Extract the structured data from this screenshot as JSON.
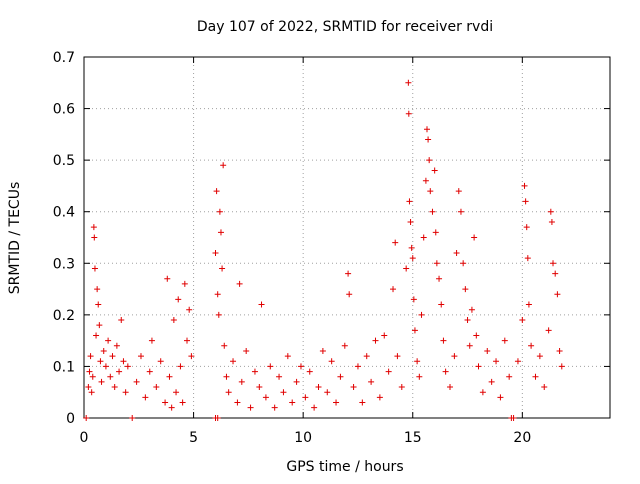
{
  "chart_data": {
    "type": "scatter",
    "title": "Day 107 of 2022, SRMTID for receiver rvdi",
    "xlabel": "GPS time / hours",
    "ylabel": "SRMTID / TECUs",
    "xlim": [
      0,
      24
    ],
    "ylim": [
      0,
      0.7
    ],
    "x_ticks": [
      0,
      5,
      10,
      15,
      20
    ],
    "y_ticks": [
      0,
      0.1,
      0.2,
      0.3,
      0.4,
      0.5,
      0.6,
      0.7
    ],
    "x_tick_labels": [
      "0",
      "5",
      "10",
      "15",
      "20"
    ],
    "y_tick_labels": [
      "0",
      "0.1",
      "0.2",
      "0.3",
      "0.4",
      "0.5",
      "0.6",
      "0.7"
    ],
    "grid": true,
    "marker": "+",
    "series": [
      {
        "name": "rvdi",
        "color": "#e00000",
        "points": [
          [
            0.1,
            0.0
          ],
          [
            2.2,
            0.0
          ],
          [
            6.0,
            0.0
          ],
          [
            6.1,
            0.0
          ],
          [
            19.5,
            0.0
          ],
          [
            19.6,
            0.0
          ],
          [
            0.2,
            0.06
          ],
          [
            0.25,
            0.09
          ],
          [
            0.3,
            0.12
          ],
          [
            0.35,
            0.05
          ],
          [
            0.4,
            0.08
          ],
          [
            0.45,
            0.37
          ],
          [
            0.47,
            0.35
          ],
          [
            0.5,
            0.29
          ],
          [
            0.55,
            0.16
          ],
          [
            0.6,
            0.25
          ],
          [
            0.65,
            0.22
          ],
          [
            0.7,
            0.18
          ],
          [
            0.75,
            0.11
          ],
          [
            0.8,
            0.07
          ],
          [
            0.9,
            0.13
          ],
          [
            1.0,
            0.1
          ],
          [
            1.1,
            0.15
          ],
          [
            1.2,
            0.08
          ],
          [
            1.3,
            0.12
          ],
          [
            1.4,
            0.06
          ],
          [
            1.5,
            0.14
          ],
          [
            1.6,
            0.09
          ],
          [
            1.7,
            0.19
          ],
          [
            1.8,
            0.11
          ],
          [
            1.9,
            0.05
          ],
          [
            2.0,
            0.1
          ],
          [
            2.4,
            0.07
          ],
          [
            2.6,
            0.12
          ],
          [
            2.8,
            0.04
          ],
          [
            3.0,
            0.09
          ],
          [
            3.1,
            0.15
          ],
          [
            3.3,
            0.06
          ],
          [
            3.5,
            0.11
          ],
          [
            3.7,
            0.03
          ],
          [
            3.8,
            0.27
          ],
          [
            3.9,
            0.08
          ],
          [
            4.0,
            0.02
          ],
          [
            4.1,
            0.19
          ],
          [
            4.2,
            0.05
          ],
          [
            4.3,
            0.23
          ],
          [
            4.4,
            0.1
          ],
          [
            4.5,
            0.03
          ],
          [
            4.6,
            0.26
          ],
          [
            4.7,
            0.15
          ],
          [
            4.8,
            0.21
          ],
          [
            4.9,
            0.12
          ],
          [
            6.0,
            0.32
          ],
          [
            6.05,
            0.44
          ],
          [
            6.1,
            0.24
          ],
          [
            6.15,
            0.2
          ],
          [
            6.2,
            0.4
          ],
          [
            6.25,
            0.36
          ],
          [
            6.3,
            0.29
          ],
          [
            6.35,
            0.49
          ],
          [
            6.4,
            0.14
          ],
          [
            6.5,
            0.08
          ],
          [
            6.6,
            0.05
          ],
          [
            6.8,
            0.11
          ],
          [
            7.0,
            0.03
          ],
          [
            7.1,
            0.26
          ],
          [
            7.2,
            0.07
          ],
          [
            7.4,
            0.13
          ],
          [
            7.6,
            0.02
          ],
          [
            7.8,
            0.09
          ],
          [
            8.0,
            0.06
          ],
          [
            8.1,
            0.22
          ],
          [
            8.3,
            0.04
          ],
          [
            8.5,
            0.1
          ],
          [
            8.7,
            0.02
          ],
          [
            8.9,
            0.08
          ],
          [
            9.1,
            0.05
          ],
          [
            9.3,
            0.12
          ],
          [
            9.5,
            0.03
          ],
          [
            9.7,
            0.07
          ],
          [
            9.9,
            0.1
          ],
          [
            10.1,
            0.04
          ],
          [
            10.3,
            0.09
          ],
          [
            10.5,
            0.02
          ],
          [
            10.7,
            0.06
          ],
          [
            10.9,
            0.13
          ],
          [
            11.1,
            0.05
          ],
          [
            11.3,
            0.11
          ],
          [
            11.5,
            0.03
          ],
          [
            11.7,
            0.08
          ],
          [
            11.9,
            0.14
          ],
          [
            12.05,
            0.28
          ],
          [
            12.1,
            0.24
          ],
          [
            12.3,
            0.06
          ],
          [
            12.5,
            0.1
          ],
          [
            12.7,
            0.03
          ],
          [
            12.9,
            0.12
          ],
          [
            13.1,
            0.07
          ],
          [
            13.3,
            0.15
          ],
          [
            13.5,
            0.04
          ],
          [
            13.7,
            0.16
          ],
          [
            13.9,
            0.09
          ],
          [
            14.1,
            0.25
          ],
          [
            14.2,
            0.34
          ],
          [
            14.3,
            0.12
          ],
          [
            14.5,
            0.06
          ],
          [
            14.7,
            0.29
          ],
          [
            14.8,
            0.65
          ],
          [
            14.82,
            0.59
          ],
          [
            14.85,
            0.42
          ],
          [
            14.9,
            0.38
          ],
          [
            14.95,
            0.33
          ],
          [
            15.0,
            0.31
          ],
          [
            15.05,
            0.23
          ],
          [
            15.1,
            0.17
          ],
          [
            15.2,
            0.11
          ],
          [
            15.3,
            0.08
          ],
          [
            15.4,
            0.2
          ],
          [
            15.5,
            0.35
          ],
          [
            15.6,
            0.46
          ],
          [
            15.65,
            0.56
          ],
          [
            15.7,
            0.54
          ],
          [
            15.75,
            0.5
          ],
          [
            15.8,
            0.44
          ],
          [
            15.9,
            0.4
          ],
          [
            16.0,
            0.48
          ],
          [
            16.05,
            0.36
          ],
          [
            16.1,
            0.3
          ],
          [
            16.2,
            0.27
          ],
          [
            16.3,
            0.22
          ],
          [
            16.4,
            0.15
          ],
          [
            16.5,
            0.09
          ],
          [
            16.7,
            0.06
          ],
          [
            16.9,
            0.12
          ],
          [
            17.0,
            0.32
          ],
          [
            17.1,
            0.44
          ],
          [
            17.2,
            0.4
          ],
          [
            17.3,
            0.3
          ],
          [
            17.4,
            0.25
          ],
          [
            17.5,
            0.19
          ],
          [
            17.6,
            0.14
          ],
          [
            17.7,
            0.21
          ],
          [
            17.8,
            0.35
          ],
          [
            17.9,
            0.16
          ],
          [
            18.0,
            0.1
          ],
          [
            18.2,
            0.05
          ],
          [
            18.4,
            0.13
          ],
          [
            18.6,
            0.07
          ],
          [
            18.8,
            0.11
          ],
          [
            19.0,
            0.04
          ],
          [
            19.2,
            0.15
          ],
          [
            19.4,
            0.08
          ],
          [
            19.8,
            0.11
          ],
          [
            20.0,
            0.19
          ],
          [
            20.1,
            0.45
          ],
          [
            20.15,
            0.42
          ],
          [
            20.2,
            0.37
          ],
          [
            20.25,
            0.31
          ],
          [
            20.3,
            0.22
          ],
          [
            20.4,
            0.14
          ],
          [
            20.6,
            0.08
          ],
          [
            20.8,
            0.12
          ],
          [
            21.0,
            0.06
          ],
          [
            21.2,
            0.17
          ],
          [
            21.3,
            0.4
          ],
          [
            21.35,
            0.38
          ],
          [
            21.4,
            0.3
          ],
          [
            21.5,
            0.28
          ],
          [
            21.6,
            0.24
          ],
          [
            21.7,
            0.13
          ],
          [
            21.8,
            0.1
          ]
        ]
      }
    ]
  }
}
